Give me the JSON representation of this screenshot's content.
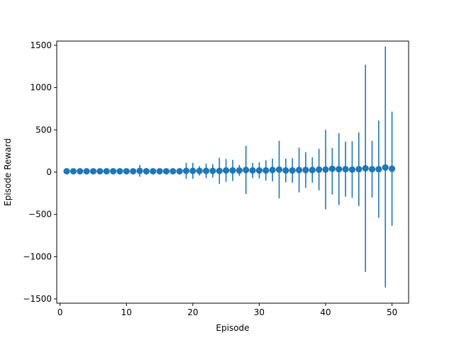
{
  "chart_data": {
    "type": "scatter",
    "title": "",
    "xlabel": "Episode",
    "ylabel": "Episode Reward",
    "xlim": [
      -0.5,
      52.5
    ],
    "ylim": [
      -1550,
      1550
    ],
    "x_ticks": [
      0,
      10,
      20,
      30,
      40,
      50
    ],
    "x_tick_labels": [
      "0",
      "10",
      "20",
      "30",
      "40",
      "50"
    ],
    "y_ticks": [
      -1500,
      -1000,
      -500,
      0,
      500,
      1000,
      1500
    ],
    "y_tick_labels": [
      "−1500",
      "−1000",
      "−500",
      "0",
      "500",
      "1000",
      "1500"
    ],
    "grid": false,
    "color": "#1f77b4",
    "series": [
      {
        "name": "Episode Reward",
        "x": [
          1,
          2,
          3,
          4,
          5,
          6,
          7,
          8,
          9,
          10,
          11,
          12,
          13,
          14,
          15,
          16,
          17,
          18,
          19,
          20,
          21,
          22,
          23,
          24,
          25,
          26,
          27,
          28,
          29,
          30,
          31,
          32,
          33,
          34,
          35,
          36,
          37,
          38,
          39,
          40,
          41,
          42,
          43,
          44,
          45,
          46,
          47,
          48,
          49,
          50
        ],
        "y": [
          10,
          10,
          10,
          10,
          10,
          10,
          10,
          10,
          10,
          10,
          10,
          15,
          10,
          10,
          10,
          10,
          10,
          10,
          15,
          15,
          15,
          15,
          15,
          15,
          20,
          20,
          20,
          25,
          20,
          20,
          20,
          25,
          30,
          20,
          20,
          25,
          25,
          25,
          30,
          30,
          40,
          35,
          35,
          30,
          35,
          45,
          35,
          35,
          55,
          40
        ],
        "err_lower": [
          10,
          10,
          10,
          10,
          10,
          20,
          10,
          10,
          10,
          10,
          20,
          70,
          40,
          20,
          10,
          10,
          10,
          10,
          95,
          95,
          55,
          85,
          80,
          155,
          135,
          125,
          65,
          285,
          90,
          95,
          120,
          135,
          340,
          140,
          145,
          265,
          210,
          150,
          245,
          470,
          305,
          425,
          325,
          335,
          435,
          1225,
          335,
          575,
          1420,
          675
        ],
        "err_upper": [
          10,
          10,
          10,
          10,
          10,
          20,
          10,
          10,
          10,
          10,
          20,
          70,
          40,
          20,
          10,
          10,
          10,
          10,
          95,
          95,
          55,
          85,
          80,
          155,
          135,
          125,
          65,
          285,
          90,
          95,
          120,
          135,
          340,
          140,
          145,
          265,
          210,
          150,
          245,
          470,
          245,
          425,
          325,
          335,
          435,
          1225,
          335,
          575,
          1430,
          675
        ]
      }
    ]
  }
}
